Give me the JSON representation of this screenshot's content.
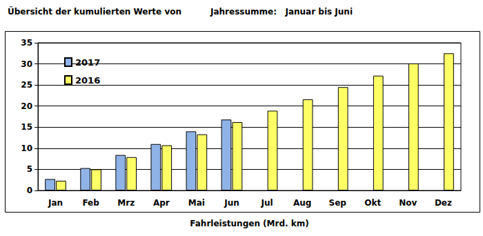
{
  "chart_data": {
    "type": "bar",
    "title": "Übersicht der kumulierten Werte von",
    "subtitle": "Jahressumme:   Januar bis Juni",
    "xlabel": "Fahrleistungen (Mrd. km)",
    "categories": [
      "Jan",
      "Feb",
      "Mrz",
      "Apr",
      "Mai",
      "Jun",
      "Jul",
      "Aug",
      "Sep",
      "Okt",
      "Nov",
      "Dez"
    ],
    "series": [
      {
        "name": "2017",
        "color": "#8fb3e6",
        "values": [
          2.7,
          5.3,
          8.4,
          11.0,
          14.0,
          16.8,
          null,
          null,
          null,
          null,
          null,
          null
        ]
      },
      {
        "name": "2016",
        "color": "#ffff66",
        "values": [
          2.3,
          5.0,
          7.9,
          10.7,
          13.3,
          16.2,
          18.9,
          21.6,
          24.5,
          27.2,
          30.1,
          32.5
        ]
      }
    ],
    "ylim": [
      0,
      35
    ],
    "yticks": [
      0,
      5,
      10,
      15,
      20,
      25,
      30,
      35
    ],
    "grid": true,
    "legend": "upper left"
  }
}
